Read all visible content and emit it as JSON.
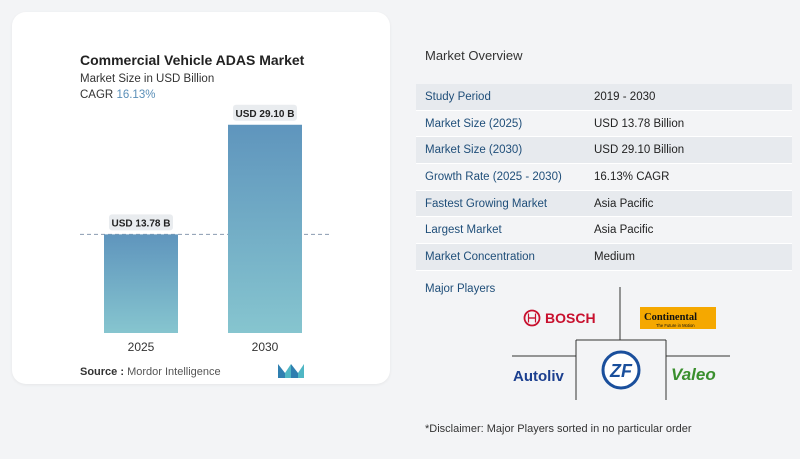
{
  "chart_data": {
    "type": "bar",
    "title": "Commercial Vehicle ADAS Market",
    "subtitle": "Market Size in USD Billion",
    "cagr_label": "CAGR",
    "cagr_value": "16.13%",
    "categories": [
      "2025",
      "2030"
    ],
    "values": [
      13.78,
      29.1
    ],
    "data_labels": [
      "USD 13.78 B",
      "USD 29.10 B"
    ],
    "ylim": [
      0,
      32
    ],
    "grid": false,
    "colors": [
      "#5f95bd",
      "#86c5cf"
    ],
    "source_label": "Source :",
    "source_text": "Mordor Intelligence"
  },
  "overview": {
    "title": "Market Overview",
    "rows": [
      {
        "key": "Study Period",
        "value": "2019 - 2030"
      },
      {
        "key": "Market Size (2025)",
        "value": "USD 13.78 Billion"
      },
      {
        "key": "Market Size (2030)",
        "value": "USD 29.10 Billion"
      },
      {
        "key": "Growth Rate (2025 - 2030)",
        "value": "16.13% CAGR"
      },
      {
        "key": "Fastest Growing Market",
        "value": "Asia Pacific"
      },
      {
        "key": "Largest Market",
        "value": "Asia Pacific"
      },
      {
        "key": "Market Concentration",
        "value": "Medium"
      }
    ]
  },
  "major_players": {
    "title": "Major Players",
    "logos": [
      {
        "name": "BOSCH",
        "icon": "bosch-logo"
      },
      {
        "name": "Continental",
        "tagline": "The Future in Motion",
        "icon": "continental-logo"
      },
      {
        "name": "Autoliv",
        "icon": "autoliv-logo"
      },
      {
        "name": "ZF",
        "icon": "zf-logo"
      },
      {
        "name": "Valeo",
        "icon": "valeo-logo"
      }
    ]
  },
  "disclaimer": "*Disclaimer: Major Players sorted in no particular order"
}
